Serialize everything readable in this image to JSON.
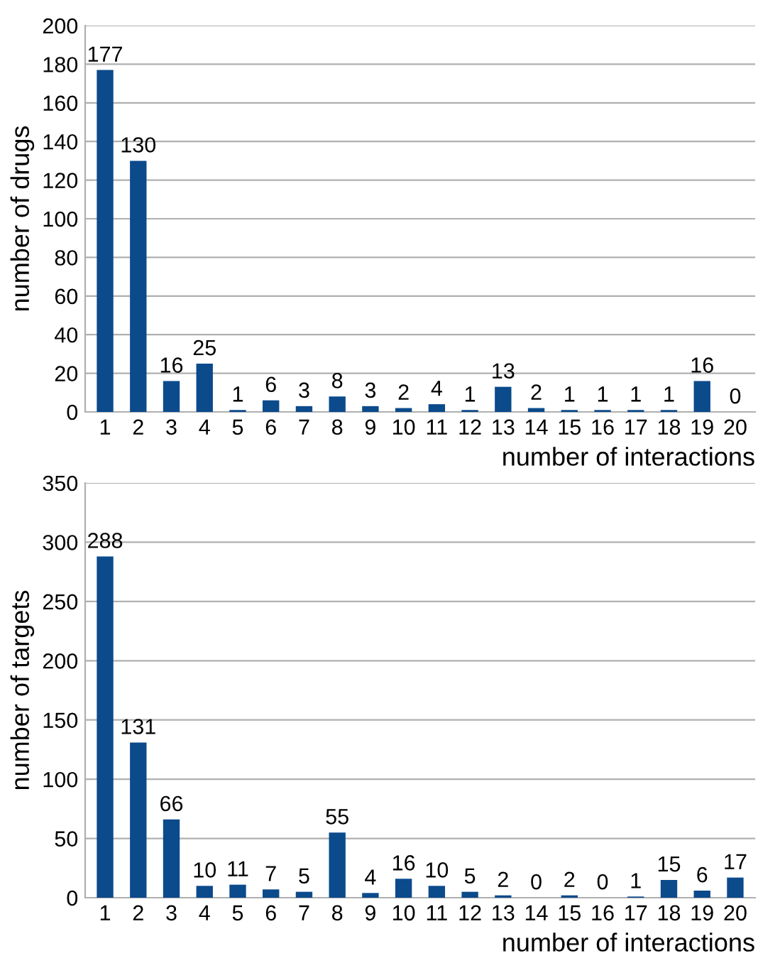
{
  "chart_data": [
    {
      "type": "bar",
      "xlabel": "number of interactions",
      "ylabel": "number of drugs",
      "categories": [
        "1",
        "2",
        "3",
        "4",
        "5",
        "6",
        "7",
        "8",
        "9",
        "10",
        "11",
        "12",
        "13",
        "14",
        "15",
        "16",
        "17",
        "18",
        "19",
        "20"
      ],
      "values": [
        177,
        130,
        16,
        25,
        1,
        6,
        3,
        8,
        3,
        2,
        4,
        1,
        13,
        2,
        1,
        1,
        1,
        1,
        16,
        0
      ],
      "color": "#0b4a8b",
      "ylim": [
        0,
        200
      ],
      "yticks": [
        0,
        20,
        40,
        60,
        80,
        100,
        120,
        140,
        160,
        180,
        200
      ],
      "grid": "y",
      "data_labels": true
    },
    {
      "type": "bar",
      "xlabel": "number of interactions",
      "ylabel": "number of targets",
      "categories": [
        "1",
        "2",
        "3",
        "4",
        "5",
        "6",
        "7",
        "8",
        "9",
        "10",
        "11",
        "12",
        "13",
        "14",
        "15",
        "16",
        "17",
        "18",
        "19",
        "20"
      ],
      "values": [
        288,
        131,
        66,
        10,
        11,
        7,
        5,
        55,
        4,
        16,
        10,
        5,
        2,
        0,
        2,
        0,
        1,
        15,
        6,
        17
      ],
      "color": "#0b4a8b",
      "ylim": [
        0,
        350
      ],
      "yticks": [
        0,
        50,
        100,
        150,
        200,
        250,
        300,
        350
      ],
      "grid": "y",
      "data_labels": true
    }
  ]
}
